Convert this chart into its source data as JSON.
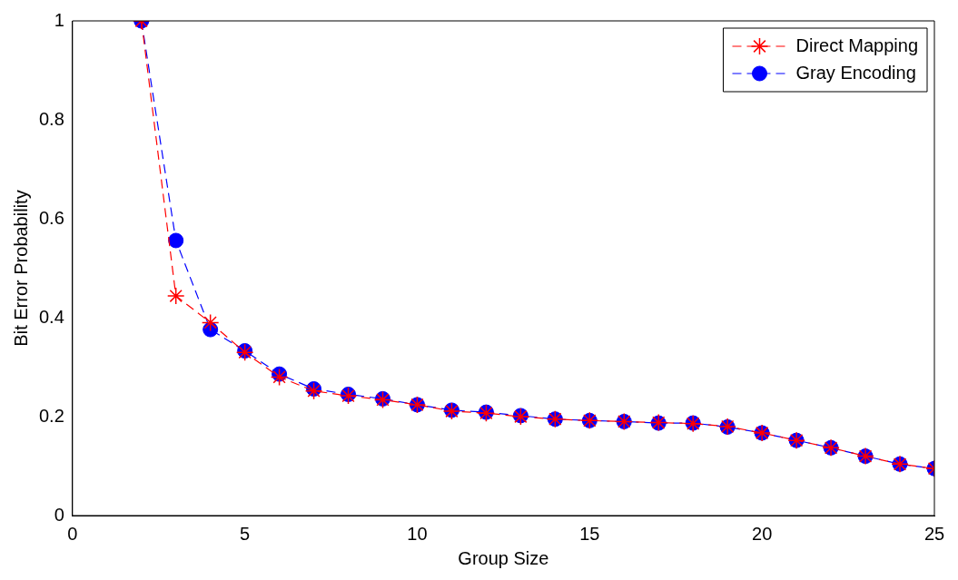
{
  "chart_data": {
    "type": "line",
    "xlabel": "Group Size",
    "ylabel": "Bit Error Probability",
    "x": [
      2,
      3,
      4,
      5,
      6,
      7,
      8,
      9,
      10,
      11,
      12,
      13,
      14,
      15,
      16,
      17,
      18,
      19,
      20,
      21,
      22,
      23,
      24,
      25
    ],
    "series": [
      {
        "name": "Direct Mapping",
        "color": "#ff0000",
        "marker": "cross",
        "line_style": "dashed",
        "values": [
          1,
          0.444,
          0.39,
          0.33,
          0.28,
          0.252,
          0.242,
          0.234,
          0.224,
          0.211,
          0.207,
          0.2,
          0.195,
          0.192,
          0.19,
          0.188,
          0.186,
          0.18,
          0.167,
          0.152,
          0.137,
          0.12,
          0.104,
          0.095
        ]
      },
      {
        "name": "Gray Encoding",
        "color": "#0000ff",
        "marker": "circle",
        "line_style": "dashed",
        "values": [
          1,
          0.556,
          0.376,
          0.333,
          0.286,
          0.256,
          0.245,
          0.236,
          0.224,
          0.213,
          0.209,
          0.202,
          0.195,
          0.192,
          0.19,
          0.187,
          0.187,
          0.179,
          0.167,
          0.152,
          0.137,
          0.12,
          0.104,
          0.095
        ]
      }
    ],
    "xlim": [
      0,
      25
    ],
    "xticks": [
      0,
      5,
      10,
      15,
      20,
      25
    ],
    "ylim": [
      0,
      1
    ],
    "yticks": [
      0,
      0.2,
      0.4,
      0.6,
      0.8,
      1
    ],
    "grid": false,
    "legend": "top right"
  }
}
